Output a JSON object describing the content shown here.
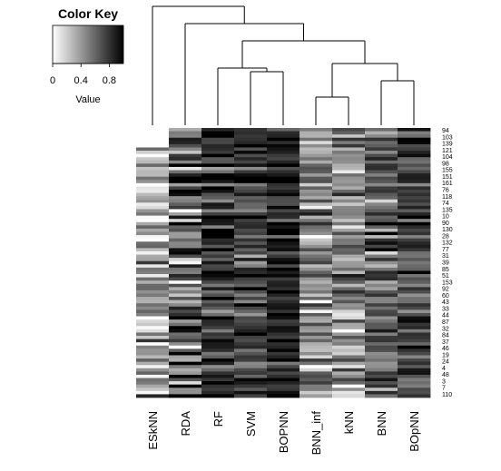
{
  "chart_data": {
    "type": "heatmap",
    "color_key": {
      "title": "Color Key",
      "xlabel": "Value",
      "ticks": [
        "0",
        "0.4",
        "0.8"
      ],
      "tick_values": [
        0,
        0.4,
        0.8
      ],
      "range": [
        0,
        1
      ],
      "low_color": "#ffffff",
      "high_color": "#000000"
    },
    "columns": [
      "ESkNN",
      "RDA",
      "RF",
      "SVM",
      "BOPNN",
      "BNN_inf",
      "kNN",
      "BNN",
      "BOpNN"
    ],
    "row_labels": [
      "94",
      "103",
      "139",
      "121",
      "104",
      "98",
      "155",
      "151",
      "161",
      "76",
      "118",
      "74",
      "135",
      "10",
      "90",
      "130",
      "28",
      "132",
      "77",
      "31",
      "39",
      "85",
      "51",
      "153",
      "92",
      "60",
      "43",
      "33",
      "44",
      "87",
      "32",
      "84",
      "37",
      "46",
      "19",
      "24",
      "4",
      "48",
      "3",
      "7",
      "110"
    ],
    "column_dendrogram": "ESkNN | (RDA | ((RF | (SVM | BOPNN)) | ((BNN_inf | kNN) | (BNN | BOpNN))))",
    "row_count": 83,
    "column_means": [
      0.35,
      0.6,
      0.8,
      0.75,
      0.85,
      0.45,
      0.45,
      0.6,
      0.7
    ],
    "column_sd": [
      0.2,
      0.25,
      0.15,
      0.18,
      0.12,
      0.2,
      0.2,
      0.18,
      0.15
    ],
    "blank_rows_first_column": 6
  }
}
